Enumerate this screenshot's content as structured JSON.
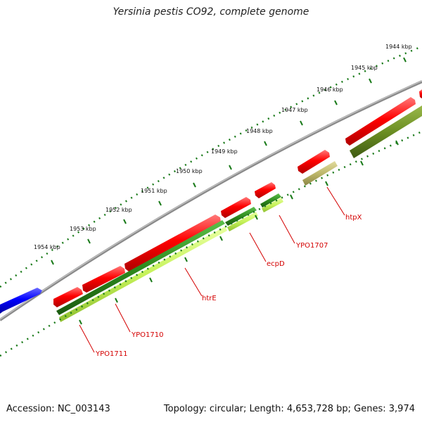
{
  "title": "Yersinia pestis CO92, complete genome",
  "footer": {
    "accession": "Accession: NC_003143",
    "summary": "Topology: circular; Length: 4,653,728 bp; Genes: 3,974"
  },
  "scale_labels": [
    "1954 kbp",
    "1953 kbp",
    "1952 kbp",
    "1951 kbp",
    "1950 kbp",
    "1949 kbp",
    "1948 kbp",
    "1947 kbp",
    "1946 kbp",
    "1945 kbp",
    "1944 kbp"
  ],
  "gene_labels": [
    "YPO1711",
    "YPO1710",
    "htrE",
    "ecpD",
    "YPO1707",
    "htpX"
  ],
  "colors": {
    "forward_gene": "#ff0000",
    "reverse_gene": "#0000ff",
    "backbone": "#8a8a8a",
    "tick": "#1a7a1a",
    "label": "#d40000",
    "cds_green": "#2e8b1e",
    "cds_lime": "#c6f25a",
    "cds_olive": "#6b8e23",
    "cds_khaki": "#bdb76b"
  }
}
